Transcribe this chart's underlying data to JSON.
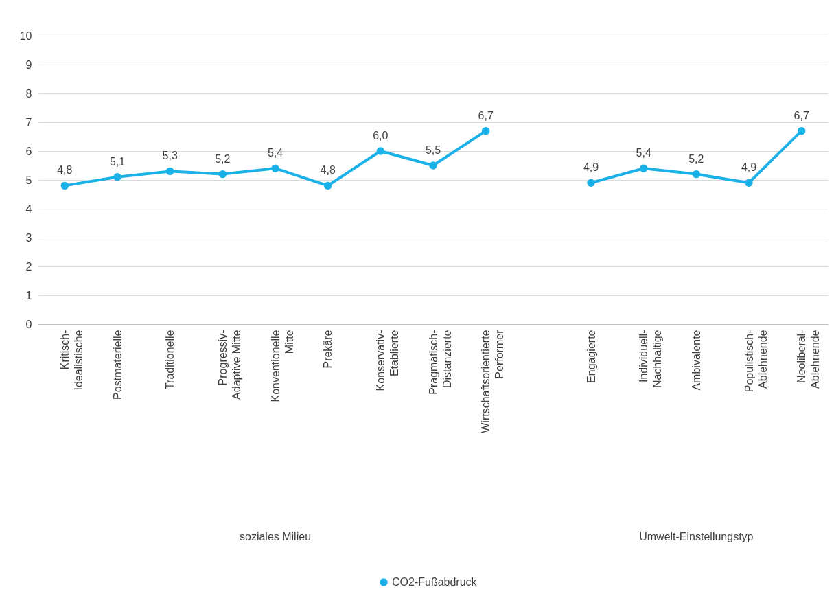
{
  "chart_data": {
    "type": "line",
    "categories": [
      "Kritisch-Idealistische",
      "Postmaterielle",
      "Traditionelle",
      "Progressiv-Adaptive Mitte",
      "Konventionelle Mitte",
      "Prekäre",
      "Konservativ-Etablierte",
      "Pragmatisch-Distanzierte",
      "Wirtschaftsorientierte Performer",
      null,
      "Engagierte",
      "Individuell-Nachhaltige",
      "Ambivalente",
      "Populistisch-Ablehnende",
      "Neoliberal-Ablehnende"
    ],
    "series": [
      {
        "name": "CO2-Fußabdruck",
        "color": "#1ab0e8",
        "values": [
          4.8,
          5.1,
          5.3,
          5.2,
          5.4,
          4.8,
          6.0,
          5.5,
          6.7,
          null,
          4.9,
          5.4,
          5.2,
          4.9,
          6.7
        ],
        "value_labels": [
          "4,8",
          "5,1",
          "5,3",
          "5,2",
          "5,4",
          "4,8",
          "6,0",
          "5,5",
          "6,7",
          null,
          "4,9",
          "5,4",
          "5,2",
          "4,9",
          "6,7"
        ]
      }
    ],
    "ylim": [
      0,
      10
    ],
    "yticks": [
      0,
      1,
      2,
      3,
      4,
      5,
      6,
      7,
      8,
      9,
      10
    ],
    "annotations": [
      "soziales Milieu",
      "Umwelt-Einstellungstyp"
    ],
    "grid": "y",
    "legend": "bottom",
    "marker": "circle",
    "line_style": "solid"
  }
}
